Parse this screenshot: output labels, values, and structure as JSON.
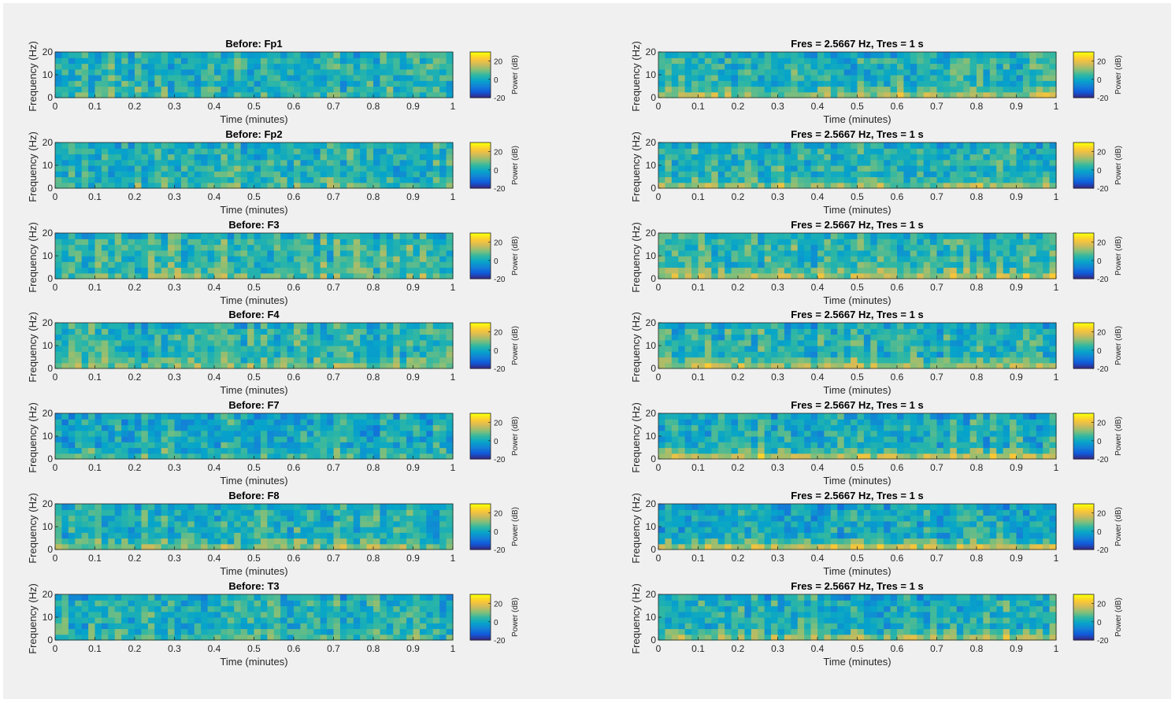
{
  "window": {
    "background": "#f0f0f0"
  },
  "colormap": {
    "name": "parula",
    "stops": [
      "#352a87",
      "#0f5cdd",
      "#1481d6",
      "#06a4ca",
      "#2eb7a4",
      "#87bf77",
      "#d1bb59",
      "#fec832",
      "#f9fb0e"
    ]
  },
  "chart_data": [
    {
      "type": "heatmap",
      "column": "left",
      "title": "Before: Fp1",
      "xlabel": "Time (minutes)",
      "ylabel": "Frequency (Hz)",
      "xticks": [
        "0",
        "0.1",
        "0.2",
        "0.3",
        "0.4",
        "0.5",
        "0.6",
        "0.7",
        "0.8",
        "0.9",
        "1"
      ],
      "yticks": [
        "0",
        "10",
        "20"
      ],
      "xlim": [
        0,
        1
      ],
      "ylim": [
        0,
        20
      ],
      "colorbar": {
        "label": "Power (dB)",
        "ticks": [
          "20",
          "0",
          "-20"
        ],
        "clim": [
          -20,
          30
        ]
      },
      "grid": {
        "time_bins": 60,
        "freq_bins": 8
      },
      "mean_db": 3,
      "low_freq_boost_db": 2
    },
    {
      "type": "heatmap",
      "column": "left",
      "title": "Before: Fp2",
      "xlabel": "Time (minutes)",
      "ylabel": "Frequency (Hz)",
      "xticks": [
        "0",
        "0.1",
        "0.2",
        "0.3",
        "0.4",
        "0.5",
        "0.6",
        "0.7",
        "0.8",
        "0.9",
        "1"
      ],
      "yticks": [
        "0",
        "10",
        "20"
      ],
      "xlim": [
        0,
        1
      ],
      "ylim": [
        0,
        20
      ],
      "colorbar": {
        "label": "Power (dB)",
        "ticks": [
          "20",
          "0",
          "-20"
        ],
        "clim": [
          -20,
          30
        ]
      },
      "grid": {
        "time_bins": 60,
        "freq_bins": 8
      },
      "mean_db": 3,
      "low_freq_boost_db": 3
    },
    {
      "type": "heatmap",
      "column": "left",
      "title": "Before: F3",
      "xlabel": "Time (minutes)",
      "ylabel": "Frequency (Hz)",
      "xticks": [
        "0",
        "0.1",
        "0.2",
        "0.3",
        "0.4",
        "0.5",
        "0.6",
        "0.7",
        "0.8",
        "0.9",
        "1"
      ],
      "yticks": [
        "0",
        "10",
        "20"
      ],
      "xlim": [
        0,
        1
      ],
      "ylim": [
        0,
        20
      ],
      "colorbar": {
        "label": "Power (dB)",
        "ticks": [
          "20",
          "0",
          "-20"
        ],
        "clim": [
          -20,
          30
        ]
      },
      "grid": {
        "time_bins": 60,
        "freq_bins": 8
      },
      "mean_db": 5,
      "low_freq_boost_db": 4
    },
    {
      "type": "heatmap",
      "column": "left",
      "title": "Before: F4",
      "xlabel": "Time (minutes)",
      "ylabel": "Frequency (Hz)",
      "xticks": [
        "0",
        "0.1",
        "0.2",
        "0.3",
        "0.4",
        "0.5",
        "0.6",
        "0.7",
        "0.8",
        "0.9",
        "1"
      ],
      "yticks": [
        "0",
        "10",
        "20"
      ],
      "xlim": [
        0,
        1
      ],
      "ylim": [
        0,
        20
      ],
      "colorbar": {
        "label": "Power (dB)",
        "ticks": [
          "20",
          "0",
          "-20"
        ],
        "clim": [
          -20,
          30
        ]
      },
      "grid": {
        "time_bins": 60,
        "freq_bins": 8
      },
      "mean_db": 4,
      "low_freq_boost_db": 7
    },
    {
      "type": "heatmap",
      "column": "left",
      "title": "Before: F7",
      "xlabel": "Time (minutes)",
      "ylabel": "Frequency (Hz)",
      "xticks": [
        "0",
        "0.1",
        "0.2",
        "0.3",
        "0.4",
        "0.5",
        "0.6",
        "0.7",
        "0.8",
        "0.9",
        "1"
      ],
      "yticks": [
        "0",
        "10",
        "20"
      ],
      "xlim": [
        0,
        1
      ],
      "ylim": [
        0,
        20
      ],
      "colorbar": {
        "label": "Power (dB)",
        "ticks": [
          "20",
          "0",
          "-20"
        ],
        "clim": [
          -20,
          30
        ]
      },
      "grid": {
        "time_bins": 60,
        "freq_bins": 8
      },
      "mean_db": 1,
      "low_freq_boost_db": 5
    },
    {
      "type": "heatmap",
      "column": "left",
      "title": "Before: F8",
      "xlabel": "Time (minutes)",
      "ylabel": "Frequency (Hz)",
      "xticks": [
        "0",
        "0.1",
        "0.2",
        "0.3",
        "0.4",
        "0.5",
        "0.6",
        "0.7",
        "0.8",
        "0.9",
        "1"
      ],
      "yticks": [
        "0",
        "10",
        "20"
      ],
      "xlim": [
        0,
        1
      ],
      "ylim": [
        0,
        20
      ],
      "colorbar": {
        "label": "Power (dB)",
        "ticks": [
          "20",
          "0",
          "-20"
        ],
        "clim": [
          -20,
          30
        ]
      },
      "grid": {
        "time_bins": 60,
        "freq_bins": 8
      },
      "mean_db": 2,
      "low_freq_boost_db": 8
    },
    {
      "type": "heatmap",
      "column": "left",
      "title": "Before: T3",
      "xlabel": "Time (minutes)",
      "ylabel": "Frequency (Hz)",
      "xticks": [
        "0",
        "0.1",
        "0.2",
        "0.3",
        "0.4",
        "0.5",
        "0.6",
        "0.7",
        "0.8",
        "0.9",
        "1"
      ],
      "yticks": [
        "0",
        "10",
        "20"
      ],
      "xlim": [
        0,
        1
      ],
      "ylim": [
        0,
        20
      ],
      "colorbar": {
        "label": "Power (dB)",
        "ticks": [
          "20",
          "0",
          "-20"
        ],
        "clim": [
          -20,
          30
        ]
      },
      "grid": {
        "time_bins": 60,
        "freq_bins": 8
      },
      "mean_db": 2,
      "low_freq_boost_db": 3
    },
    {
      "type": "heatmap",
      "column": "right",
      "title": "Fres = 2.5667 Hz, Tres = 1 s",
      "xlabel": "Time (minutes)",
      "ylabel": "Frequency (Hz)",
      "xticks": [
        "0",
        "0.1",
        "0.2",
        "0.3",
        "0.4",
        "0.5",
        "0.6",
        "0.7",
        "0.8",
        "0.9",
        "1"
      ],
      "yticks": [
        "0",
        "10",
        "20"
      ],
      "xlim": [
        0,
        1
      ],
      "ylim": [
        0,
        20
      ],
      "colorbar": {
        "label": "Power (dB)",
        "ticks": [
          "20",
          "0",
          "-20"
        ],
        "clim": [
          -20,
          30
        ]
      },
      "grid": {
        "time_bins": 60,
        "freq_bins": 8
      },
      "mean_db": 3,
      "low_freq_boost_db": 10
    },
    {
      "type": "heatmap",
      "column": "right",
      "title": "Fres = 2.5667 Hz, Tres = 1 s",
      "xlabel": "Time (minutes)",
      "ylabel": "Frequency (Hz)",
      "xticks": [
        "0",
        "0.1",
        "0.2",
        "0.3",
        "0.4",
        "0.5",
        "0.6",
        "0.7",
        "0.8",
        "0.9",
        "1"
      ],
      "yticks": [
        "0",
        "10",
        "20"
      ],
      "xlim": [
        0,
        1
      ],
      "ylim": [
        0,
        20
      ],
      "colorbar": {
        "label": "Power (dB)",
        "ticks": [
          "20",
          "0",
          "-20"
        ],
        "clim": [
          -20,
          30
        ]
      },
      "grid": {
        "time_bins": 60,
        "freq_bins": 8
      },
      "mean_db": 3,
      "low_freq_boost_db": 9
    },
    {
      "type": "heatmap",
      "column": "right",
      "title": "Fres = 2.5667 Hz, Tres = 1 s",
      "xlabel": "Time (minutes)",
      "ylabel": "Frequency (Hz)",
      "xticks": [
        "0",
        "0.1",
        "0.2",
        "0.3",
        "0.4",
        "0.5",
        "0.6",
        "0.7",
        "0.8",
        "0.9",
        "1"
      ],
      "yticks": [
        "0",
        "10",
        "20"
      ],
      "xlim": [
        0,
        1
      ],
      "ylim": [
        0,
        20
      ],
      "colorbar": {
        "label": "Power (dB)",
        "ticks": [
          "20",
          "0",
          "-20"
        ],
        "clim": [
          -20,
          30
        ]
      },
      "grid": {
        "time_bins": 60,
        "freq_bins": 8
      },
      "mean_db": 4,
      "low_freq_boost_db": 10
    },
    {
      "type": "heatmap",
      "column": "right",
      "title": "Fres = 2.5667 Hz, Tres = 1 s",
      "xlabel": "Time (minutes)",
      "ylabel": "Frequency (Hz)",
      "xticks": [
        "0",
        "0.1",
        "0.2",
        "0.3",
        "0.4",
        "0.5",
        "0.6",
        "0.7",
        "0.8",
        "0.9",
        "1"
      ],
      "yticks": [
        "0",
        "10",
        "20"
      ],
      "xlim": [
        0,
        1
      ],
      "ylim": [
        0,
        20
      ],
      "colorbar": {
        "label": "Power (dB)",
        "ticks": [
          "20",
          "0",
          "-20"
        ],
        "clim": [
          -20,
          30
        ]
      },
      "grid": {
        "time_bins": 60,
        "freq_bins": 8
      },
      "mean_db": 3,
      "low_freq_boost_db": 11
    },
    {
      "type": "heatmap",
      "column": "right",
      "title": "Fres = 2.5667 Hz, Tres = 1 s",
      "xlabel": "Time (minutes)",
      "ylabel": "Frequency (Hz)",
      "xticks": [
        "0",
        "0.1",
        "0.2",
        "0.3",
        "0.4",
        "0.5",
        "0.6",
        "0.7",
        "0.8",
        "0.9",
        "1"
      ],
      "yticks": [
        "0",
        "10",
        "20"
      ],
      "xlim": [
        0,
        1
      ],
      "ylim": [
        0,
        20
      ],
      "colorbar": {
        "label": "Power (dB)",
        "ticks": [
          "20",
          "0",
          "-20"
        ],
        "clim": [
          -20,
          30
        ]
      },
      "grid": {
        "time_bins": 60,
        "freq_bins": 8
      },
      "mean_db": 2,
      "low_freq_boost_db": 14
    },
    {
      "type": "heatmap",
      "column": "right",
      "title": "Fres = 2.5667 Hz, Tres = 1 s",
      "xlabel": "Time (minutes)",
      "ylabel": "Frequency (Hz)",
      "xticks": [
        "0",
        "0.1",
        "0.2",
        "0.3",
        "0.4",
        "0.5",
        "0.6",
        "0.7",
        "0.8",
        "0.9",
        "1"
      ],
      "yticks": [
        "0",
        "10",
        "20"
      ],
      "xlim": [
        0,
        1
      ],
      "ylim": [
        0,
        20
      ],
      "colorbar": {
        "label": "Power (dB)",
        "ticks": [
          "20",
          "0",
          "-20"
        ],
        "clim": [
          -20,
          30
        ]
      },
      "grid": {
        "time_bins": 60,
        "freq_bins": 8
      },
      "mean_db": 1,
      "low_freq_boost_db": 15
    },
    {
      "type": "heatmap",
      "column": "right",
      "title": "Fres = 2.5667 Hz, Tres = 1 s",
      "xlabel": "Time (minutes)",
      "ylabel": "Frequency (Hz)",
      "xticks": [
        "0",
        "0.1",
        "0.2",
        "0.3",
        "0.4",
        "0.5",
        "0.6",
        "0.7",
        "0.8",
        "0.9",
        "1"
      ],
      "yticks": [
        "0",
        "10",
        "20"
      ],
      "xlim": [
        0,
        1
      ],
      "ylim": [
        0,
        20
      ],
      "colorbar": {
        "label": "Power (dB)",
        "ticks": [
          "20",
          "0",
          "-20"
        ],
        "clim": [
          -20,
          30
        ]
      },
      "grid": {
        "time_bins": 60,
        "freq_bins": 8
      },
      "mean_db": 2,
      "low_freq_boost_db": 10
    }
  ]
}
